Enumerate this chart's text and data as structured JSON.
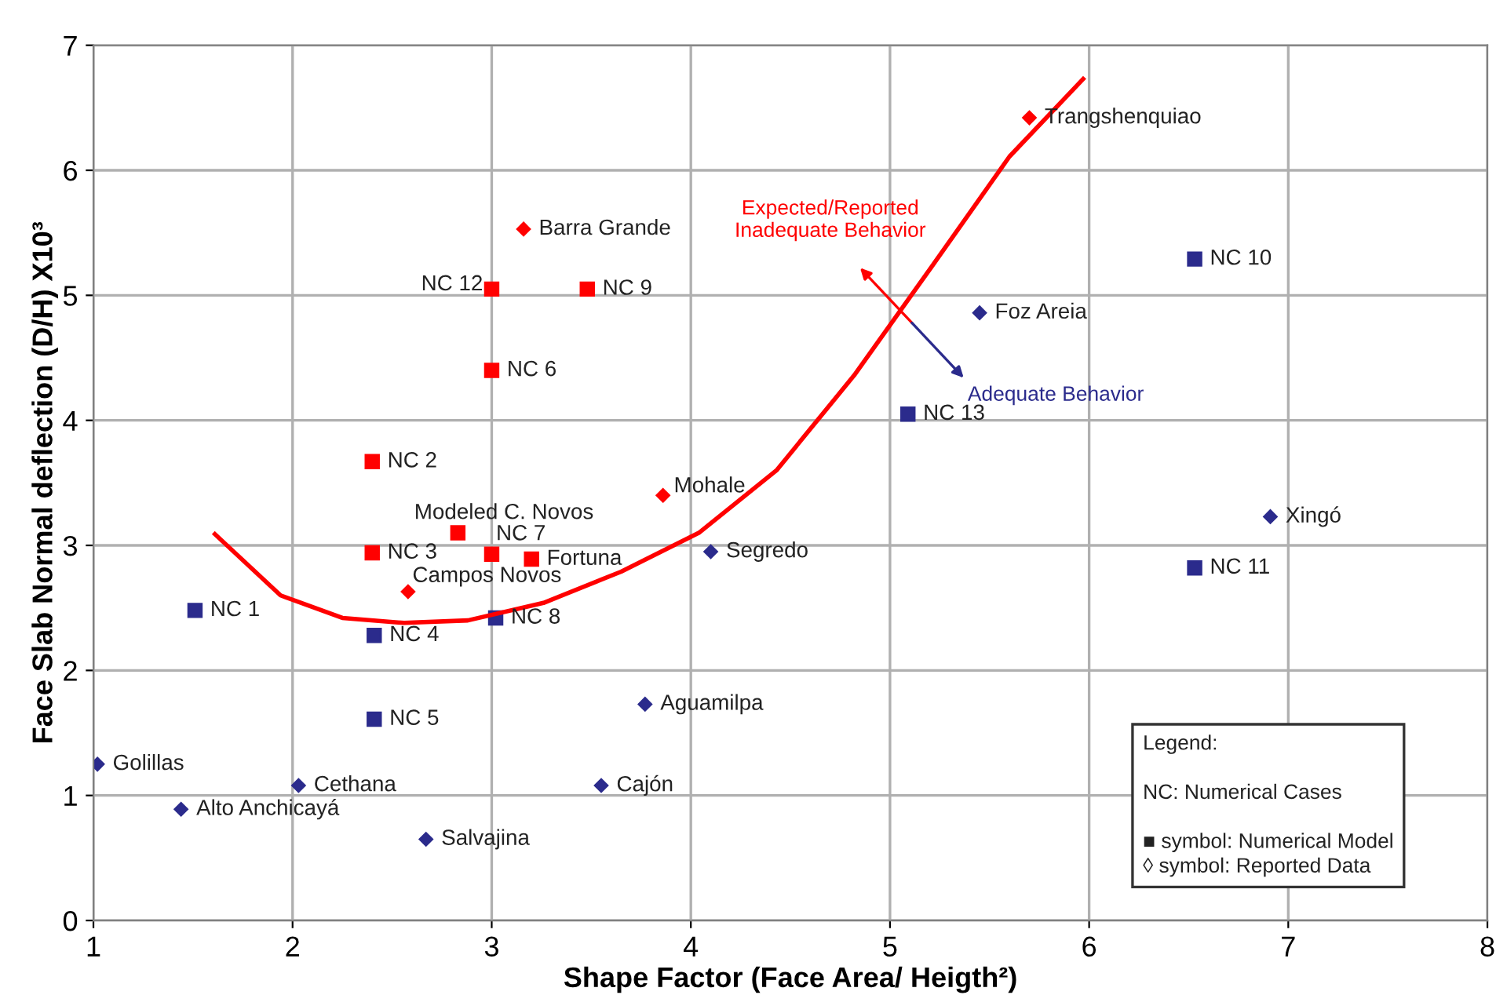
{
  "chart_data": {
    "type": "scatter",
    "xlabel": "Shape Factor (Face Area/ Heigth²)",
    "ylabel": "Face Slab Normal deflection (D/H) X10³",
    "xlim": [
      1,
      8
    ],
    "ylim": [
      0,
      7
    ],
    "xticks": [
      1,
      2,
      3,
      4,
      5,
      6,
      7,
      8
    ],
    "yticks": [
      0,
      1,
      2,
      3,
      4,
      5,
      6,
      7
    ],
    "grid": true,
    "legend": false,
    "series": [
      {
        "color": "#ff0000",
        "marker": "square",
        "x": [
          3.0,
          3.48,
          3.0,
          2.4,
          2.83,
          2.4,
          3.0,
          3.2
        ],
        "values": [
          5.05,
          5.05,
          4.4,
          3.67,
          3.1,
          2.94,
          2.93,
          2.89
        ]
      },
      {
        "color": "#ff0000",
        "marker": "diamond",
        "x": [
          3.16,
          5.7,
          3.86,
          2.58
        ],
        "values": [
          5.53,
          6.42,
          3.4,
          2.63
        ]
      },
      {
        "color": "#2b2b8c",
        "marker": "square",
        "x": [
          1.51,
          2.41,
          3.02,
          2.41,
          6.53,
          5.09,
          6.53
        ],
        "values": [
          2.48,
          2.28,
          2.42,
          1.61,
          5.29,
          4.05,
          2.82
        ]
      },
      {
        "color": "#2b2b8c",
        "marker": "diamond",
        "x": [
          1.02,
          2.03,
          1.44,
          2.67,
          3.55,
          3.77,
          4.1,
          5.45,
          6.91
        ],
        "values": [
          1.25,
          1.08,
          0.89,
          0.65,
          1.08,
          1.73,
          2.95,
          4.86,
          3.23
        ]
      },
      {
        "type": "line",
        "color": "#ff0000",
        "marker": "none",
        "x": [
          1.61,
          1.94,
          2.25,
          2.56,
          2.88,
          3.26,
          3.65,
          4.04,
          4.43,
          4.82,
          5.21,
          5.6,
          5.97
        ],
        "values": [
          3.09,
          2.6,
          2.42,
          2.38,
          2.4,
          2.54,
          2.79,
          3.1,
          3.6,
          4.36,
          5.23,
          6.11,
          6.73
        ]
      }
    ],
    "annotations": [
      {
        "text": "NC 12",
        "x": 3.0,
        "y": 5.05
      },
      {
        "text": "NC 9",
        "x": 3.48,
        "y": 5.05
      },
      {
        "text": "NC 6",
        "x": 3.0,
        "y": 4.4
      },
      {
        "text": "NC 2",
        "x": 2.4,
        "y": 3.67
      },
      {
        "text": "Modeled C. Novos",
        "x": 2.83,
        "y": 3.1
      },
      {
        "text": "NC 3",
        "x": 2.4,
        "y": 2.94
      },
      {
        "text": "NC 7",
        "x": 3.0,
        "y": 2.93
      },
      {
        "text": "Fortuna",
        "x": 3.2,
        "y": 2.89
      },
      {
        "text": "Barra Grande",
        "x": 3.16,
        "y": 5.53
      },
      {
        "text": "Trangshenquiao",
        "x": 5.7,
        "y": 6.42
      },
      {
        "text": "Mohale",
        "x": 3.86,
        "y": 3.4
      },
      {
        "text": "Campos Novos",
        "x": 2.58,
        "y": 2.63
      },
      {
        "text": "NC 1",
        "x": 1.51,
        "y": 2.48
      },
      {
        "text": "NC 4",
        "x": 2.41,
        "y": 2.28
      },
      {
        "text": "NC 8",
        "x": 3.02,
        "y": 2.42
      },
      {
        "text": "NC 5",
        "x": 2.41,
        "y": 1.61
      },
      {
        "text": "NC 10",
        "x": 6.53,
        "y": 5.29
      },
      {
        "text": "NC 13",
        "x": 5.09,
        "y": 4.05
      },
      {
        "text": "NC 11",
        "x": 6.53,
        "y": 2.82
      },
      {
        "text": "Golillas",
        "x": 1.02,
        "y": 1.25
      },
      {
        "text": "Cethana",
        "x": 2.03,
        "y": 1.08
      },
      {
        "text": "Alto Anchicayá",
        "x": 1.44,
        "y": 0.89
      },
      {
        "text": "Salvajina",
        "x": 2.67,
        "y": 0.65
      },
      {
        "text": "Cajón",
        "x": 3.55,
        "y": 1.08
      },
      {
        "text": "Aguamilpa",
        "x": 3.77,
        "y": 1.73
      },
      {
        "text": "Segredo",
        "x": 4.1,
        "y": 2.95
      },
      {
        "text": "Foz Areia",
        "x": 5.45,
        "y": 4.86
      },
      {
        "text": "Xingó",
        "x": 6.91,
        "y": 3.23
      },
      "Expected/Reported\nInadequate Behavior",
      "Adequate Behavior",
      "Legend:",
      "NC: Numerical Cases",
      "■ symbol: Numerical Model",
      "◊ symbol: Reported Data"
    ]
  }
}
